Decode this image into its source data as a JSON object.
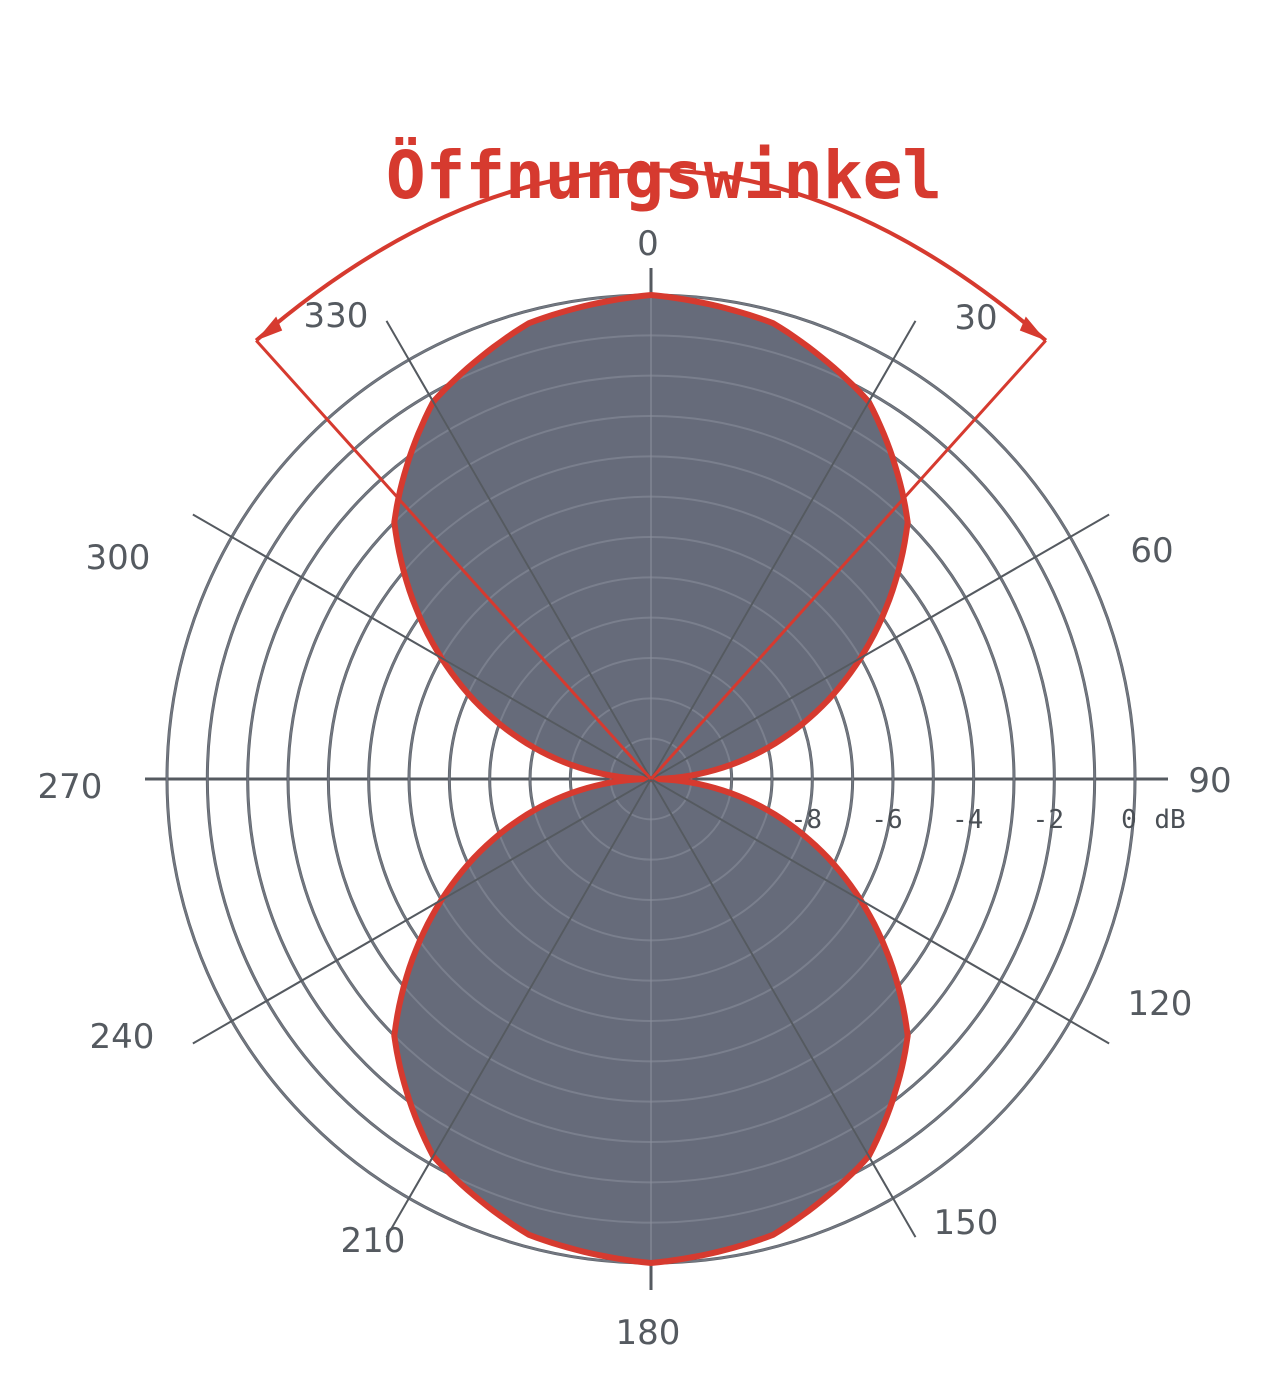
{
  "chart_data": {
    "type": "polar",
    "title": "Öffnungswinkel",
    "angular_ticks": [
      "0",
      "30",
      "60",
      "90",
      "120",
      "150",
      "180",
      "210",
      "240",
      "270",
      "300",
      "330"
    ],
    "radial_ticks": [
      "-8",
      "-6",
      "-4",
      "-2",
      "0"
    ],
    "radial_unit": "dB",
    "radial_range_db": [
      -12,
      0
    ],
    "pattern": "figure-eight (bidirectional)",
    "series": [
      {
        "angles_deg": [
          0,
          15,
          30,
          45,
          60,
          90,
          120,
          135,
          150,
          165,
          180,
          195,
          210,
          225,
          240,
          270,
          300,
          315,
          330,
          345
        ],
        "level_db": [
          0,
          -0.3,
          -1.2,
          -3.0,
          -6.0,
          -12,
          -6.0,
          -3.0,
          -1.2,
          -0.3,
          0,
          -0.3,
          -1.2,
          -3.0,
          -6.0,
          -12,
          -6.0,
          -3.0,
          -1.2,
          -0.3
        ]
      }
    ],
    "annotation": {
      "label": "Öffnungswinkel",
      "from_deg": 318,
      "to_deg": 42
    },
    "colors": {
      "fill": "#666b7a",
      "outline": "#d63a2f",
      "grid": "#555a60",
      "annotation": "#d63a2f"
    }
  }
}
